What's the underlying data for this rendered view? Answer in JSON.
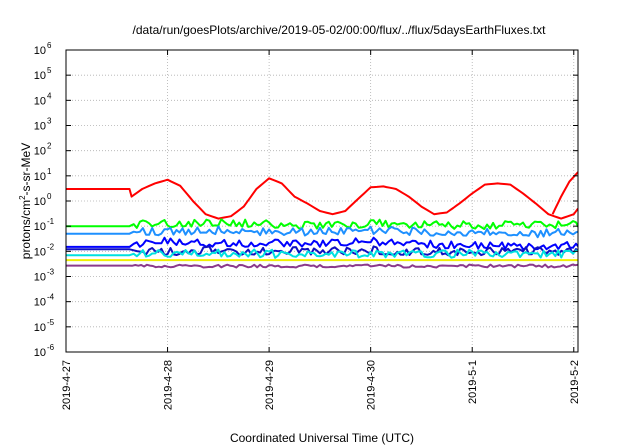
{
  "chart_data": {
    "type": "line",
    "title": "/data/run/goesPlots/archive/2019-05-02/00:00/flux/../flux/5daysEarthFluxes.txt",
    "xlabel": "Coordinated Universal Time (UTC)",
    "ylabel": "protons/cm2-s-sr-MeV",
    "ylabel_parts": [
      "protons/cm",
      "2",
      "-s-sr-MeV"
    ],
    "yscale": "log",
    "ylim": [
      1e-06,
      1000000.0
    ],
    "y_ticks": [
      {
        "base": "10",
        "exp": "-6",
        "value": -6
      },
      {
        "base": "10",
        "exp": "-5",
        "value": -5
      },
      {
        "base": "10",
        "exp": "-4",
        "value": -4
      },
      {
        "base": "10",
        "exp": "-3",
        "value": -3
      },
      {
        "base": "10",
        "exp": "-2",
        "value": -2
      },
      {
        "base": "10",
        "exp": "-1",
        "value": -1
      },
      {
        "base": "10",
        "exp": "0",
        "value": 0
      },
      {
        "base": "10",
        "exp": "1",
        "value": 1
      },
      {
        "base": "10",
        "exp": "2",
        "value": 2
      },
      {
        "base": "10",
        "exp": "3",
        "value": 3
      },
      {
        "base": "10",
        "exp": "4",
        "value": 4
      },
      {
        "base": "10",
        "exp": "5",
        "value": 5
      },
      {
        "base": "10",
        "exp": "6",
        "value": 6
      }
    ],
    "xlim": [
      "2019-04-27",
      "2019-05-02T01:00"
    ],
    "x_ticks": [
      {
        "label": "2019-4-27",
        "date": "2019-04-27"
      },
      {
        "label": "2019-4-28",
        "date": "2019-04-28"
      },
      {
        "label": "2019-4-29",
        "date": "2019-04-29"
      },
      {
        "label": "2019-4-30",
        "date": "2019-04-30"
      },
      {
        "label": "2019-5-1",
        "date": "2019-05-01"
      },
      {
        "label": "2019-5-2",
        "date": "2019-05-02"
      }
    ],
    "grid": true,
    "series": [
      {
        "color": "#ff0000",
        "x": [
          "2019-04-27T00:00",
          "2019-04-27T15:00",
          "2019-04-27T15:30",
          "2019-04-27T18:00",
          "2019-04-27T21:00",
          "2019-04-28T00:00",
          "2019-04-28T03:00",
          "2019-04-28T06:00",
          "2019-04-28T09:00",
          "2019-04-28T12:00",
          "2019-04-28T15:00",
          "2019-04-28T18:00",
          "2019-04-28T21:00",
          "2019-04-29T00:00",
          "2019-04-29T03:00",
          "2019-04-29T06:00",
          "2019-04-29T09:00",
          "2019-04-29T12:00",
          "2019-04-29T15:00",
          "2019-04-29T18:00",
          "2019-04-29T21:00",
          "2019-04-30T00:00",
          "2019-04-30T03:00",
          "2019-04-30T06:00",
          "2019-04-30T09:00",
          "2019-04-30T12:00",
          "2019-04-30T15:00",
          "2019-04-30T18:00",
          "2019-04-30T21:00",
          "2019-05-01T00:00",
          "2019-05-01T03:00",
          "2019-05-01T06:00",
          "2019-05-01T09:00",
          "2019-05-01T12:00",
          "2019-05-01T15:00",
          "2019-05-01T18:00",
          "2019-05-01T21:00",
          "2019-05-02T00:00",
          "2019-05-02T01:00"
        ],
        "y": [
          3,
          3,
          1.5,
          3,
          5,
          7,
          4,
          1,
          0.3,
          0.2,
          0.25,
          0.6,
          3,
          8,
          5,
          1.5,
          0.8,
          0.4,
          0.3,
          0.4,
          1.2,
          3.5,
          3.8,
          3,
          1.5,
          0.6,
          0.3,
          0.35,
          0.8,
          2,
          4.5,
          5,
          4.5,
          2,
          0.8,
          0.3,
          0.2,
          0.3,
          0.5
        ]
      },
      {
        "color": "#ff0000",
        "x": [
          "2019-05-01T19:00",
          "2019-05-01T21:00",
          "2019-05-01T23:00",
          "2019-05-02T01:00",
          "2019-05-02T03:00",
          "2019-05-02T04:00"
        ],
        "y": [
          0.3,
          1.5,
          6,
          14,
          8,
          2.5
        ]
      },
      {
        "color": "#00ff00",
        "x": [
          "2019-04-27T00:00",
          "2019-04-27T15:00",
          "2019-04-27T16:00",
          "2019-04-28T00:00",
          "2019-04-28T12:00",
          "2019-04-29T00:00",
          "2019-04-29T12:00",
          "2019-04-30T00:00",
          "2019-04-30T12:00",
          "2019-05-01T00:00",
          "2019-05-01T12:00",
          "2019-05-02T04:00"
        ],
        "y": [
          0.1,
          0.1,
          0.12,
          0.13,
          0.14,
          0.12,
          0.11,
          0.13,
          0.12,
          0.11,
          0.11,
          0.12
        ]
      },
      {
        "color": "#1e90ff",
        "x": [
          "2019-04-27T00:00",
          "2019-04-27T15:00",
          "2019-04-27T16:00",
          "2019-04-28T00:00",
          "2019-04-28T12:00",
          "2019-04-29T00:00",
          "2019-04-29T12:00",
          "2019-04-30T00:00",
          "2019-04-30T12:00",
          "2019-05-01T00:00",
          "2019-05-01T12:00",
          "2019-05-02T04:00"
        ],
        "y": [
          0.05,
          0.05,
          0.06,
          0.06,
          0.07,
          0.06,
          0.06,
          0.07,
          0.06,
          0.06,
          0.05,
          0.06
        ]
      },
      {
        "color": "#0000ff",
        "x": [
          "2019-04-27T00:00",
          "2019-04-27T15:00",
          "2019-04-27T16:00",
          "2019-04-28T00:00",
          "2019-04-28T12:00",
          "2019-04-29T00:00",
          "2019-04-29T12:00",
          "2019-04-30T00:00",
          "2019-04-30T12:00",
          "2019-05-01T00:00",
          "2019-05-01T12:00",
          "2019-05-02T04:00"
        ],
        "y": [
          0.015,
          0.015,
          0.02,
          0.025,
          0.02,
          0.022,
          0.02,
          0.025,
          0.02,
          0.018,
          0.017,
          0.018
        ]
      },
      {
        "color": "#1010c0",
        "x": [
          "2019-04-27T00:00",
          "2019-04-27T15:00",
          "2019-04-27T16:00",
          "2019-04-28T00:00",
          "2019-04-28T12:00",
          "2019-04-29T00:00",
          "2019-04-29T12:00",
          "2019-04-30T00:00",
          "2019-04-30T12:00",
          "2019-05-01T00:00",
          "2019-05-01T12:00",
          "2019-05-02T04:00"
        ],
        "y": [
          0.012,
          0.012,
          0.011,
          0.01,
          0.011,
          0.01,
          0.011,
          0.011,
          0.01,
          0.01,
          0.011,
          0.01
        ]
      },
      {
        "color": "#00e0e0",
        "x": [
          "2019-04-27T00:00",
          "2019-04-27T15:00",
          "2019-04-27T16:00",
          "2019-04-28T00:00",
          "2019-04-28T12:00",
          "2019-04-29T00:00",
          "2019-04-29T12:00",
          "2019-04-30T00:00",
          "2019-04-30T12:00",
          "2019-05-01T00:00",
          "2019-05-01T12:00",
          "2019-05-02T04:00"
        ],
        "y": [
          0.007,
          0.007,
          0.008,
          0.008,
          0.009,
          0.008,
          0.008,
          0.008,
          0.008,
          0.008,
          0.008,
          0.008
        ]
      },
      {
        "color": "#f0f000",
        "x": [
          "2019-04-27T00:00",
          "2019-04-28T00:00",
          "2019-04-29T00:00",
          "2019-04-30T00:00",
          "2019-05-01T00:00",
          "2019-05-02T04:00"
        ],
        "y": [
          0.0045,
          0.0045,
          0.0045,
          0.0045,
          0.0045,
          0.0045
        ]
      },
      {
        "color": "#8b3a8b",
        "x": [
          "2019-04-27T00:00",
          "2019-04-27T15:00",
          "2019-04-28T00:00",
          "2019-04-29T00:00",
          "2019-04-30T00:00",
          "2019-05-01T00:00",
          "2019-05-02T04:00"
        ],
        "y": [
          0.0027,
          0.0027,
          0.0026,
          0.0026,
          0.0026,
          0.0026,
          0.0026
        ]
      }
    ]
  }
}
